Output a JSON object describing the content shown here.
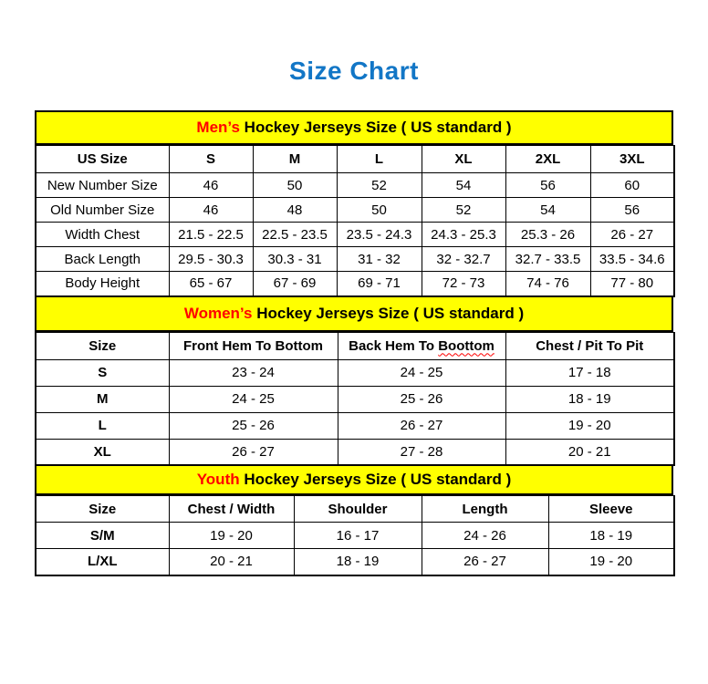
{
  "title": "Size Chart",
  "colors": {
    "title_blue": "#1276C6",
    "band_yellow": "#FFFF00",
    "keyword_red": "#FF0000",
    "border_black": "#000000"
  },
  "sections": {
    "men": {
      "keyword": "Men’s",
      "title_rest": " Hockey Jerseys Size ( US standard )",
      "headers": [
        "US Size",
        "S",
        "M",
        "L",
        "XL",
        "2XL",
        "3XL"
      ],
      "rows": [
        [
          "New Number Size",
          "46",
          "50",
          "52",
          "54",
          "56",
          "60"
        ],
        [
          "Old Number Size",
          "46",
          "48",
          "50",
          "52",
          "54",
          "56"
        ],
        [
          "Width Chest",
          "21.5 - 22.5",
          "22.5 - 23.5",
          "23.5 - 24.3",
          "24.3 - 25.3",
          "25.3 - 26",
          "26 - 27"
        ],
        [
          "Back Length",
          "29.5 - 30.3",
          "30.3 - 31",
          "31 - 32",
          "32 - 32.7",
          "32.7 - 33.5",
          "33.5 - 34.6"
        ],
        [
          "Body Height",
          "65 - 67",
          "67 - 69",
          "69 - 71",
          "72 - 73",
          "74 - 76",
          "77 - 80"
        ]
      ]
    },
    "women": {
      "keyword": "Women’s",
      "title_rest": " Hockey Jerseys Size ( US standard )",
      "headers": {
        "0": "Size",
        "1": "Front Hem To Bottom",
        "2": {
          "prefix": "Back Hem To ",
          "misspelled_word": "Boottom"
        },
        "3": "Chest / Pit To Pit"
      },
      "rows": [
        [
          "S",
          "23 - 24",
          "24 - 25",
          "17 - 18"
        ],
        [
          "M",
          "24 - 25",
          "25 - 26",
          "18 - 19"
        ],
        [
          "L",
          "25 - 26",
          "26 - 27",
          "19 - 20"
        ],
        [
          "XL",
          "26 - 27",
          "27 - 28",
          "20 - 21"
        ]
      ]
    },
    "youth": {
      "keyword": "Youth",
      "title_rest": " Hockey Jerseys Size ( US standard )",
      "headers": [
        "Size",
        "Chest / Width",
        "Shoulder",
        "Length",
        "Sleeve"
      ],
      "rows": [
        [
          "S/M",
          "19 - 20",
          "16 - 17",
          "24 - 26",
          "18 - 19"
        ],
        [
          "L/XL",
          "20 - 21",
          "18 - 19",
          "26 - 27",
          "19 - 20"
        ]
      ]
    }
  }
}
